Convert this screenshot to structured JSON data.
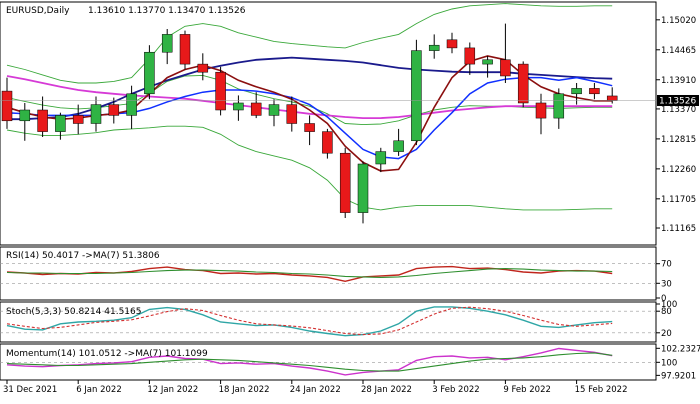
{
  "chart_data": [
    {
      "type": "candlestick",
      "title": "EURUSD,Daily",
      "ohlc_header": "1.13610 1.13770 1.13470 1.13526",
      "current_price_label": "1.13526",
      "ylim": [
        1.1085,
        1.1535
      ],
      "y_ticks": [
        "1.15020",
        "1.14465",
        "1.13910",
        "1.13370",
        "1.12815",
        "1.12260",
        "1.11705",
        "1.11165"
      ],
      "x_tick_labels": [
        "31 Dec 2021",
        "6 Jan 2022",
        "12 Jan 2022",
        "18 Jan 2022",
        "24 Jan 2022",
        "28 Jan 2022",
        "3 Feb 2022",
        "9 Feb 2022",
        "15 Feb 2022"
      ],
      "x_tick_index": [
        0,
        4,
        8,
        12,
        16,
        20,
        24,
        28,
        32
      ],
      "colors": {
        "up": "#2fb344",
        "down": "#e8191a",
        "ma_fast": "#8b0f0f",
        "ma_slow": "#1a1a8c",
        "kijun": "#1030ff",
        "pink": "#d63ad6",
        "bollinger": "#3aa83a"
      },
      "candles": [
        [
          1.137,
          1.1395,
          1.13,
          1.1315
        ],
        [
          1.1315,
          1.1348,
          1.1278,
          1.1335
        ],
        [
          1.1335,
          1.136,
          1.1285,
          1.1295
        ],
        [
          1.1295,
          1.133,
          1.128,
          1.1325
        ],
        [
          1.1325,
          1.1345,
          1.129,
          1.131
        ],
        [
          1.131,
          1.136,
          1.1295,
          1.1345
        ],
        [
          1.1345,
          1.1358,
          1.131,
          1.1325
        ],
        [
          1.1325,
          1.138,
          1.13,
          1.1365
        ],
        [
          1.1365,
          1.1455,
          1.1355,
          1.1442
        ],
        [
          1.1442,
          1.1485,
          1.142,
          1.1475
        ],
        [
          1.1475,
          1.1482,
          1.141,
          1.142
        ],
        [
          1.142,
          1.144,
          1.139,
          1.1405
        ],
        [
          1.1405,
          1.1415,
          1.1325,
          1.1335
        ],
        [
          1.1335,
          1.1362,
          1.1315,
          1.1348
        ],
        [
          1.1348,
          1.1368,
          1.132,
          1.1325
        ],
        [
          1.1325,
          1.1355,
          1.1305,
          1.1345
        ],
        [
          1.1345,
          1.136,
          1.1295,
          1.131
        ],
        [
          1.131,
          1.1325,
          1.127,
          1.1295
        ],
        [
          1.1295,
          1.13,
          1.1245,
          1.1255
        ],
        [
          1.1255,
          1.1265,
          1.1135,
          1.1145
        ],
        [
          1.1145,
          1.124,
          1.1125,
          1.1235
        ],
        [
          1.1235,
          1.1265,
          1.122,
          1.1258
        ],
        [
          1.1258,
          1.13,
          1.125,
          1.1278
        ],
        [
          1.1278,
          1.1465,
          1.127,
          1.1445
        ],
        [
          1.1445,
          1.1475,
          1.143,
          1.1455
        ],
        [
          1.1465,
          1.1478,
          1.144,
          1.145
        ],
        [
          1.145,
          1.146,
          1.14,
          1.142
        ],
        [
          1.142,
          1.1435,
          1.1395,
          1.1428
        ],
        [
          1.1428,
          1.1495,
          1.1385,
          1.1398
        ],
        [
          1.142,
          1.1425,
          1.134,
          1.1348
        ],
        [
          1.1348,
          1.1365,
          1.129,
          1.132
        ],
        [
          1.132,
          1.1375,
          1.13,
          1.1365
        ],
        [
          1.1365,
          1.1385,
          1.1345,
          1.1375
        ],
        [
          1.1375,
          1.1385,
          1.1355,
          1.1365
        ],
        [
          1.1361,
          1.1377,
          1.1347,
          1.13526
        ]
      ],
      "ma_fast": [
        1.134,
        1.133,
        1.1322,
        1.1318,
        1.132,
        1.1325,
        1.1328,
        1.1335,
        1.1365,
        1.1395,
        1.141,
        1.1418,
        1.1408,
        1.139,
        1.1378,
        1.1368,
        1.1355,
        1.1335,
        1.131,
        1.1268,
        1.1238,
        1.1222,
        1.1225,
        1.1275,
        1.134,
        1.1395,
        1.1425,
        1.1435,
        1.1428,
        1.14,
        1.1378,
        1.1365,
        1.1358,
        1.1352,
        1.1352
      ],
      "ma_slow": [
        1.1318,
        1.1318,
        1.132,
        1.1322,
        1.1328,
        1.1338,
        1.135,
        1.1365,
        1.1378,
        1.139,
        1.14,
        1.141,
        1.1417,
        1.1423,
        1.1428,
        1.143,
        1.1432,
        1.143,
        1.1428,
        1.1426,
        1.1423,
        1.1418,
        1.1413,
        1.141,
        1.1408,
        1.1406,
        1.1405,
        1.1405,
        1.1405,
        1.1402,
        1.14,
        1.1398,
        1.1396,
        1.1394,
        1.1393
      ],
      "kijun": [
        1.133,
        1.1328,
        1.1325,
        1.1325,
        1.1325,
        1.1325,
        1.1328,
        1.133,
        1.1338,
        1.135,
        1.136,
        1.1368,
        1.1372,
        1.1372,
        1.137,
        1.1365,
        1.1358,
        1.1345,
        1.1322,
        1.1292,
        1.1262,
        1.1248,
        1.1245,
        1.1262,
        1.1298,
        1.133,
        1.1365,
        1.1385,
        1.1392,
        1.1395,
        1.1395,
        1.139,
        1.1395,
        1.1388,
        1.138
      ],
      "pink": [
        1.1398,
        1.1392,
        1.1385,
        1.1378,
        1.1372,
        1.1368,
        1.1365,
        1.1362,
        1.136,
        1.1358,
        1.1356,
        1.1352,
        1.1348,
        1.1344,
        1.134,
        1.1336,
        1.1332,
        1.1328,
        1.1325,
        1.1322,
        1.132,
        1.132,
        1.1322,
        1.1326,
        1.133,
        1.1334,
        1.1337,
        1.134,
        1.1342,
        1.1342,
        1.1342,
        1.1342,
        1.1342,
        1.1342,
        1.1342
      ],
      "bollinger_upper": [
        1.1418,
        1.141,
        1.14,
        1.139,
        1.1385,
        1.1385,
        1.1388,
        1.1395,
        1.143,
        1.147,
        1.149,
        1.1495,
        1.149,
        1.1478,
        1.147,
        1.1462,
        1.1458,
        1.1455,
        1.1452,
        1.145,
        1.146,
        1.1468,
        1.1475,
        1.1495,
        1.1512,
        1.1522,
        1.1528,
        1.153,
        1.1532,
        1.153,
        1.1528,
        1.1527,
        1.1527,
        1.1528,
        1.1528
      ],
      "bollinger_lower": [
        1.1298,
        1.1292,
        1.1288,
        1.1288,
        1.129,
        1.1293,
        1.1298,
        1.13,
        1.1302,
        1.1305,
        1.1305,
        1.1303,
        1.129,
        1.127,
        1.1258,
        1.125,
        1.1242,
        1.1228,
        1.1205,
        1.117,
        1.1155,
        1.115,
        1.1155,
        1.1158,
        1.1158,
        1.1158,
        1.1158,
        1.1155,
        1.1152,
        1.115,
        1.115,
        1.115,
        1.1151,
        1.1152,
        1.1152
      ],
      "bollinger_mid": [
        1.1358,
        1.1351,
        1.1344,
        1.1339,
        1.1337,
        1.1339,
        1.1343,
        1.1347,
        1.1366,
        1.1388,
        1.1398,
        1.1399,
        1.139,
        1.1374,
        1.1364,
        1.1356,
        1.135,
        1.1342,
        1.1328,
        1.131,
        1.1308,
        1.1309,
        1.1315,
        1.1326,
        1.1335,
        1.134,
        1.1343,
        1.1342,
        1.1342,
        1.134,
        1.1339,
        1.1338,
        1.1339,
        1.134,
        1.134
      ]
    },
    {
      "type": "line",
      "title": "RSI(14) 50.4017  ->MA(7) 51.3806",
      "ylim": [
        0,
        100
      ],
      "y_ticks": [
        "70",
        "30",
        "0"
      ],
      "levels": [
        70,
        30
      ],
      "series": [
        {
          "values": [
            53,
            51,
            48,
            50,
            49,
            52,
            51,
            54,
            60,
            63,
            58,
            56,
            50,
            51,
            49,
            50,
            47,
            45,
            42,
            34,
            43,
            45,
            47,
            60,
            63,
            64,
            60,
            61,
            58,
            53,
            51,
            55,
            56,
            55,
            50
          ]
        },
        {
          "values": [
            52,
            51,
            51,
            50,
            50,
            50,
            51,
            52,
            54,
            56,
            57,
            57,
            56,
            55,
            53,
            52,
            50,
            49,
            47,
            44,
            43,
            42,
            43,
            46,
            50,
            53,
            56,
            59,
            60,
            59,
            57,
            56,
            55,
            55,
            54
          ]
        }
      ]
    },
    {
      "type": "line",
      "title": "Stoch(5,3,3) 50.8214 41.5165",
      "ylim": [
        0,
        100
      ],
      "y_ticks": [
        "100",
        "80",
        "20"
      ],
      "levels": [
        80,
        20
      ],
      "series": [
        {
          "values": [
            40,
            30,
            28,
            45,
            50,
            52,
            55,
            62,
            85,
            90,
            85,
            70,
            50,
            45,
            40,
            42,
            35,
            25,
            18,
            12,
            15,
            25,
            45,
            80,
            92,
            92,
            88,
            80,
            70,
            55,
            38,
            35,
            42,
            48,
            51
          ]
        },
        {
          "values": [
            45,
            38,
            32,
            35,
            42,
            49,
            52,
            56,
            67,
            79,
            87,
            82,
            68,
            55,
            45,
            42,
            39,
            34,
            26,
            18,
            15,
            17,
            28,
            50,
            72,
            88,
            91,
            87,
            80,
            68,
            55,
            43,
            38,
            42,
            46
          ]
        }
      ]
    },
    {
      "type": "line",
      "title": "Momentum(14) 101.0512  ->MA(7) 101.1099",
      "ylim": [
        97.5,
        102.6
      ],
      "y_ticks": [
        "102.2327",
        "100",
        "97.9201"
      ],
      "levels": [
        100
      ],
      "series": [
        {
          "values": [
            99.6,
            99.4,
            99.3,
            99.5,
            99.6,
            99.8,
            99.9,
            100.1,
            100.8,
            101.0,
            100.6,
            100.5,
            99.8,
            99.9,
            99.7,
            99.8,
            99.4,
            99.1,
            98.6,
            98.0,
            98.4,
            98.6,
            98.8,
            100.3,
            100.9,
            101.0,
            100.7,
            100.8,
            100.4,
            100.9,
            101.5,
            102.2,
            101.9,
            101.6,
            101.05
          ]
        },
        {
          "values": [
            99.8,
            99.7,
            99.6,
            99.5,
            99.5,
            99.6,
            99.7,
            99.8,
            100.0,
            100.2,
            100.4,
            100.5,
            100.4,
            100.3,
            100.1,
            99.9,
            99.7,
            99.5,
            99.2,
            98.9,
            98.7,
            98.6,
            98.6,
            99.0,
            99.4,
            99.8,
            100.2,
            100.5,
            100.6,
            100.7,
            100.9,
            101.2,
            101.4,
            101.5,
            101.11
          ]
        }
      ]
    }
  ]
}
